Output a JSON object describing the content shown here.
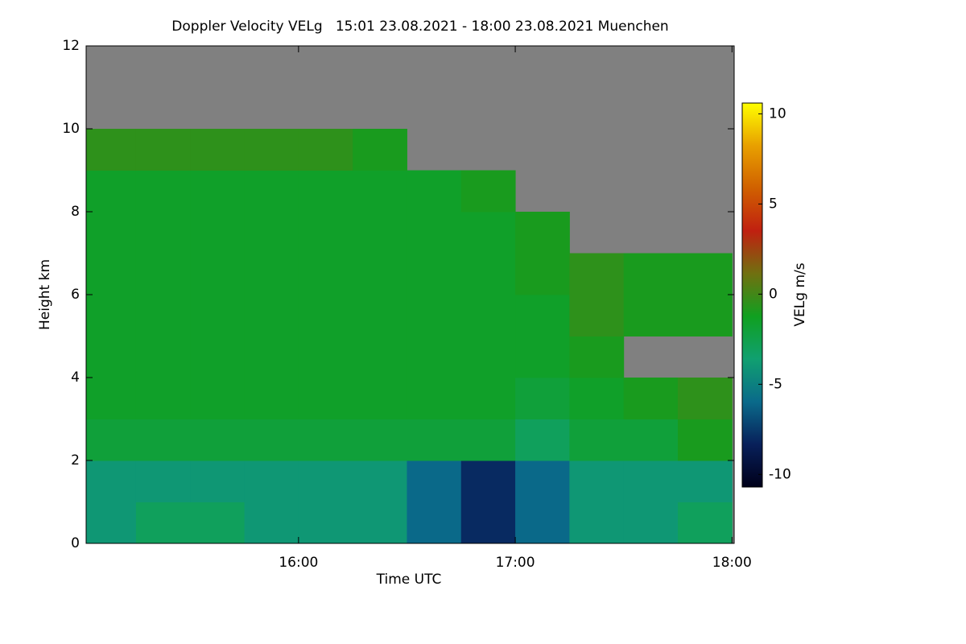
{
  "chart_data": {
    "type": "heatmap",
    "title": "Doppler Velocity VELg   15:01 23.08.2021 - 18:00 23.08.2021 Muenchen",
    "x_label": "Time UTC",
    "y_label": "Height km",
    "colorbar_label": "VELg m/s",
    "x": [
      15.125,
      15.375,
      15.625,
      15.875,
      16.125,
      16.375,
      16.625,
      16.875,
      17.125,
      17.375,
      17.625,
      17.875
    ],
    "y": [
      0.5,
      1.5,
      2.5,
      3.5,
      4.5,
      5.5,
      6.5,
      7.5,
      8.5,
      9.5,
      10.5,
      11.5
    ],
    "z": [
      [
        -4,
        -3,
        -3,
        -4,
        -4,
        -4,
        -6,
        -8,
        -6,
        -4,
        -4,
        -3
      ],
      [
        -4,
        -4,
        -4,
        -4,
        -4,
        -4,
        -6,
        -8,
        -6,
        -4,
        -4,
        -4
      ],
      [
        -2,
        -2,
        -2,
        -2,
        -2,
        -2,
        -2,
        -2,
        -3,
        -2,
        -2,
        -1
      ],
      [
        -1.5,
        -1.5,
        -1.5,
        -1.5,
        -1.5,
        -1.5,
        -1.5,
        -1.5,
        -2,
        -1.5,
        -1,
        -0.5
      ],
      [
        -1.5,
        -1.5,
        -1.5,
        -1.5,
        -1.5,
        -1.5,
        -1.5,
        -1.5,
        -1.5,
        -1,
        null,
        null
      ],
      [
        -1.5,
        -1.5,
        -1.5,
        -1.5,
        -1.5,
        -1.5,
        -1.5,
        -1.5,
        -1.5,
        -0.5,
        -1,
        -1
      ],
      [
        -1.5,
        -1.5,
        -1.5,
        -1.5,
        -1.5,
        -1.5,
        -1.5,
        -1.5,
        -1,
        -0.5,
        -1,
        -1
      ],
      [
        -1.5,
        -1.5,
        -1.5,
        -1.5,
        -1.5,
        -1.5,
        -1.5,
        -1.5,
        -1,
        null,
        null,
        null
      ],
      [
        -1.5,
        -1.5,
        -1.5,
        -1.5,
        -1.5,
        -1.5,
        -1.5,
        -1,
        null,
        null,
        null,
        null
      ],
      [
        -0.5,
        -0.5,
        -0.5,
        -0.5,
        -0.5,
        -1,
        null,
        null,
        null,
        null,
        null,
        null
      ],
      [
        null,
        null,
        null,
        null,
        null,
        null,
        null,
        null,
        null,
        null,
        null,
        null
      ],
      [
        null,
        null,
        null,
        null,
        null,
        null,
        null,
        null,
        null,
        null,
        null,
        null
      ]
    ],
    "xlim": [
      15.02,
      18.01
    ],
    "xticks": [
      {
        "value": 16,
        "label": "16:00"
      },
      {
        "value": 17,
        "label": "17:00"
      },
      {
        "value": 18,
        "label": "18:00"
      }
    ],
    "ylim": [
      0,
      12
    ],
    "yticks": [
      0,
      2,
      4,
      6,
      8,
      10,
      12
    ],
    "zlim": [
      -10.7,
      10.6
    ],
    "zticks": [
      -10,
      -5,
      0,
      5,
      10
    ],
    "colormap": [
      "#00001a",
      "#08205a",
      "#0a6a8a",
      "#10a070",
      "#10a020",
      "#707010",
      "#c02010",
      "#d06000",
      "#e8a000",
      "#ffff00"
    ],
    "missing_color": "#808080"
  }
}
